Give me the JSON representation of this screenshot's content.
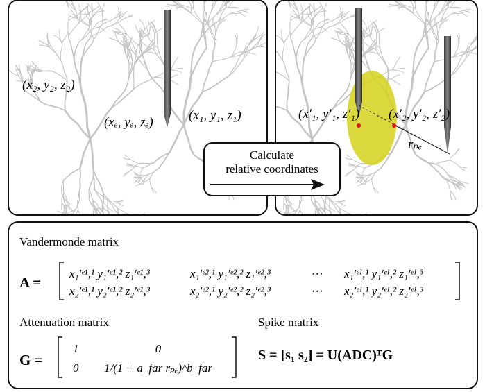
{
  "left_panel": {
    "labels": [
      "(x₂, y₂, z₂)",
      "(xₑ, yₑ, zₑ)",
      "(x₁, y₁, z₁)"
    ]
  },
  "right_panel": {
    "labels": [
      "(x′₁, y′₁, z′₁)",
      "(x′₂, y′₂, z′₂)",
      "rₚₑ"
    ]
  },
  "arrow_box": {
    "lines": [
      "Calculate",
      "relative coordinates"
    ]
  },
  "vandermonde": {
    "title": "Vandermonde matrix",
    "lhs": "A =",
    "rows": [
      [
        "x₁′ᵉ¹,¹ y₁′ᵉ¹,² z₁′ᵉ¹,³",
        "x₁′ᵉ²,¹ y₁′ᵉ²,² z₁′ᵉ²,³",
        "⋯",
        "x₁′ᵉᴵ,¹ y₁′ᵉᴵ,² z₁′ᵉᴵ,³"
      ],
      [
        "x₂′ᵉ¹,¹ y₂′ᵉ¹,² z₂′ᵉ¹,³",
        "x₂′ᵉ²,¹ y₂′ᵉ²,² z₂′ᵉ²,³",
        "⋯",
        "x₂′ᵉᴵ,¹ y₂′ᵉᴵ,² z₂′ᵉᴵ,³"
      ]
    ]
  },
  "attenuation": {
    "title": "Attenuation matrix",
    "lhs": "G =",
    "rows": [
      [
        "1",
        "0"
      ],
      [
        "0",
        "1/(1 + a_far rₚₑ)^b_far"
      ]
    ]
  },
  "spike": {
    "title": "Spike matrix",
    "equation": "S = [s₁   s₂] = U(ADC)ᵀG"
  }
}
